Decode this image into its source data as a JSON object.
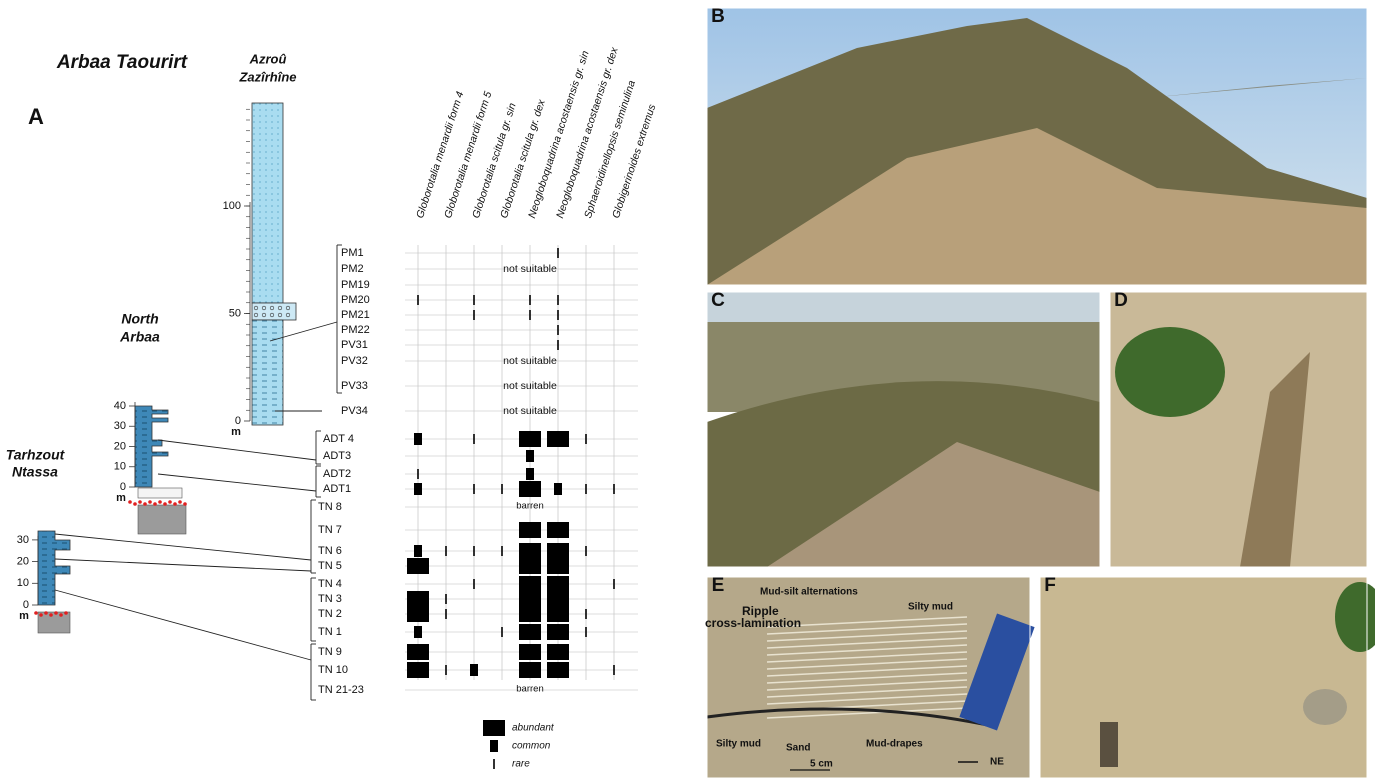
{
  "figure": {
    "title": "Arbaa Taourirt",
    "panel_label": "A",
    "sections": [
      {
        "name_lines": [
          "Azroû",
          "Zazîrhîne"
        ],
        "scale_ticks": [
          0,
          50,
          100
        ],
        "unit": "m"
      },
      {
        "name_lines": [
          "North",
          "Arbaa"
        ],
        "scale_ticks": [
          0,
          10,
          20,
          30,
          40
        ],
        "unit": "m"
      },
      {
        "name_lines": [
          "Tarhzout",
          "Ntassa"
        ],
        "scale_ticks": [
          0,
          10,
          20,
          30
        ],
        "unit": "m"
      }
    ],
    "species": [
      "Globorotalia menardii form 4",
      "Globorotalia menardii form 5",
      "Globorotalia scitula gr. sin",
      "Globorotalia scitula gr. dex",
      "Neogloboquadrina acostaensis gr. sin",
      "Neogloboquadrina acostaensis gr. dex",
      "Sphaeroidinellopsis seminulina",
      "Globigerinoides extremus"
    ],
    "samples": [
      {
        "label": "PM1",
        "abundance": [
          0,
          0,
          0,
          0,
          0,
          1,
          0,
          0
        ]
      },
      {
        "label": "PM2",
        "note": "not suitable"
      },
      {
        "label": "PM19",
        "abundance": [
          0,
          0,
          0,
          0,
          0,
          0,
          0,
          0
        ]
      },
      {
        "label": "PM20",
        "abundance": [
          1,
          0,
          1,
          0,
          1,
          1,
          0,
          0
        ]
      },
      {
        "label": "PM21",
        "abundance": [
          0,
          0,
          1,
          0,
          1,
          1,
          0,
          0
        ]
      },
      {
        "label": "PM22",
        "abundance": [
          0,
          0,
          0,
          0,
          0,
          1,
          0,
          0
        ]
      },
      {
        "label": "PV31",
        "abundance": [
          0,
          0,
          0,
          0,
          0,
          1,
          0,
          0
        ]
      },
      {
        "label": "PV32",
        "note": "not suitable"
      },
      {
        "label": "PV33",
        "note": "not suitable"
      },
      {
        "label": "PV34",
        "note": "not suitable"
      },
      {
        "label": "ADT 4",
        "abundance": [
          2,
          0,
          1,
          0,
          3,
          3,
          1,
          0
        ]
      },
      {
        "label": "ADT3",
        "abundance": [
          0,
          0,
          0,
          0,
          2,
          0,
          0,
          0
        ]
      },
      {
        "label": "ADT2",
        "abundance": [
          1,
          0,
          0,
          0,
          2,
          0,
          0,
          0
        ]
      },
      {
        "label": "ADT1",
        "abundance": [
          2,
          0,
          1,
          1,
          3,
          2,
          1,
          1
        ]
      },
      {
        "label": "TN 8",
        "note": "barren"
      },
      {
        "label": "TN 7",
        "abundance": [
          0,
          0,
          0,
          0,
          3,
          3,
          0,
          0
        ]
      },
      {
        "label": "TN 6",
        "abundance": [
          2,
          1,
          1,
          1,
          3,
          3,
          1,
          0
        ]
      },
      {
        "label": "TN 5",
        "abundance": [
          3,
          0,
          0,
          0,
          3,
          3,
          0,
          0
        ]
      },
      {
        "label": "TN 4",
        "abundance": [
          0,
          0,
          1,
          0,
          3,
          3,
          0,
          1
        ]
      },
      {
        "label": "TN 3",
        "abundance": [
          3,
          1,
          0,
          0,
          3,
          3,
          0,
          0
        ]
      },
      {
        "label": "TN 2",
        "abundance": [
          3,
          1,
          0,
          0,
          3,
          3,
          1,
          0
        ]
      },
      {
        "label": "TN 1",
        "abundance": [
          2,
          0,
          0,
          1,
          3,
          3,
          1,
          0
        ]
      },
      {
        "label": "TN 9",
        "abundance": [
          3,
          0,
          0,
          0,
          3,
          3,
          0,
          0
        ]
      },
      {
        "label": "TN 10",
        "abundance": [
          3,
          1,
          2,
          0,
          3,
          3,
          0,
          1
        ]
      },
      {
        "label": "TN 21-23",
        "note": "barren"
      }
    ],
    "legend": [
      {
        "label": "abundant",
        "level": 3
      },
      {
        "label": "common",
        "level": 2
      },
      {
        "label": "rare",
        "level": 1
      }
    ],
    "photos": [
      "B",
      "C",
      "D",
      "E",
      "F"
    ],
    "photo_e_annotations": [
      "Mud-silt alternations",
      "Silty mud",
      "Ripple",
      "cross-lamination",
      "Silty mud",
      "Sand",
      "Mud-drapes",
      "5 cm",
      "NE"
    ]
  }
}
